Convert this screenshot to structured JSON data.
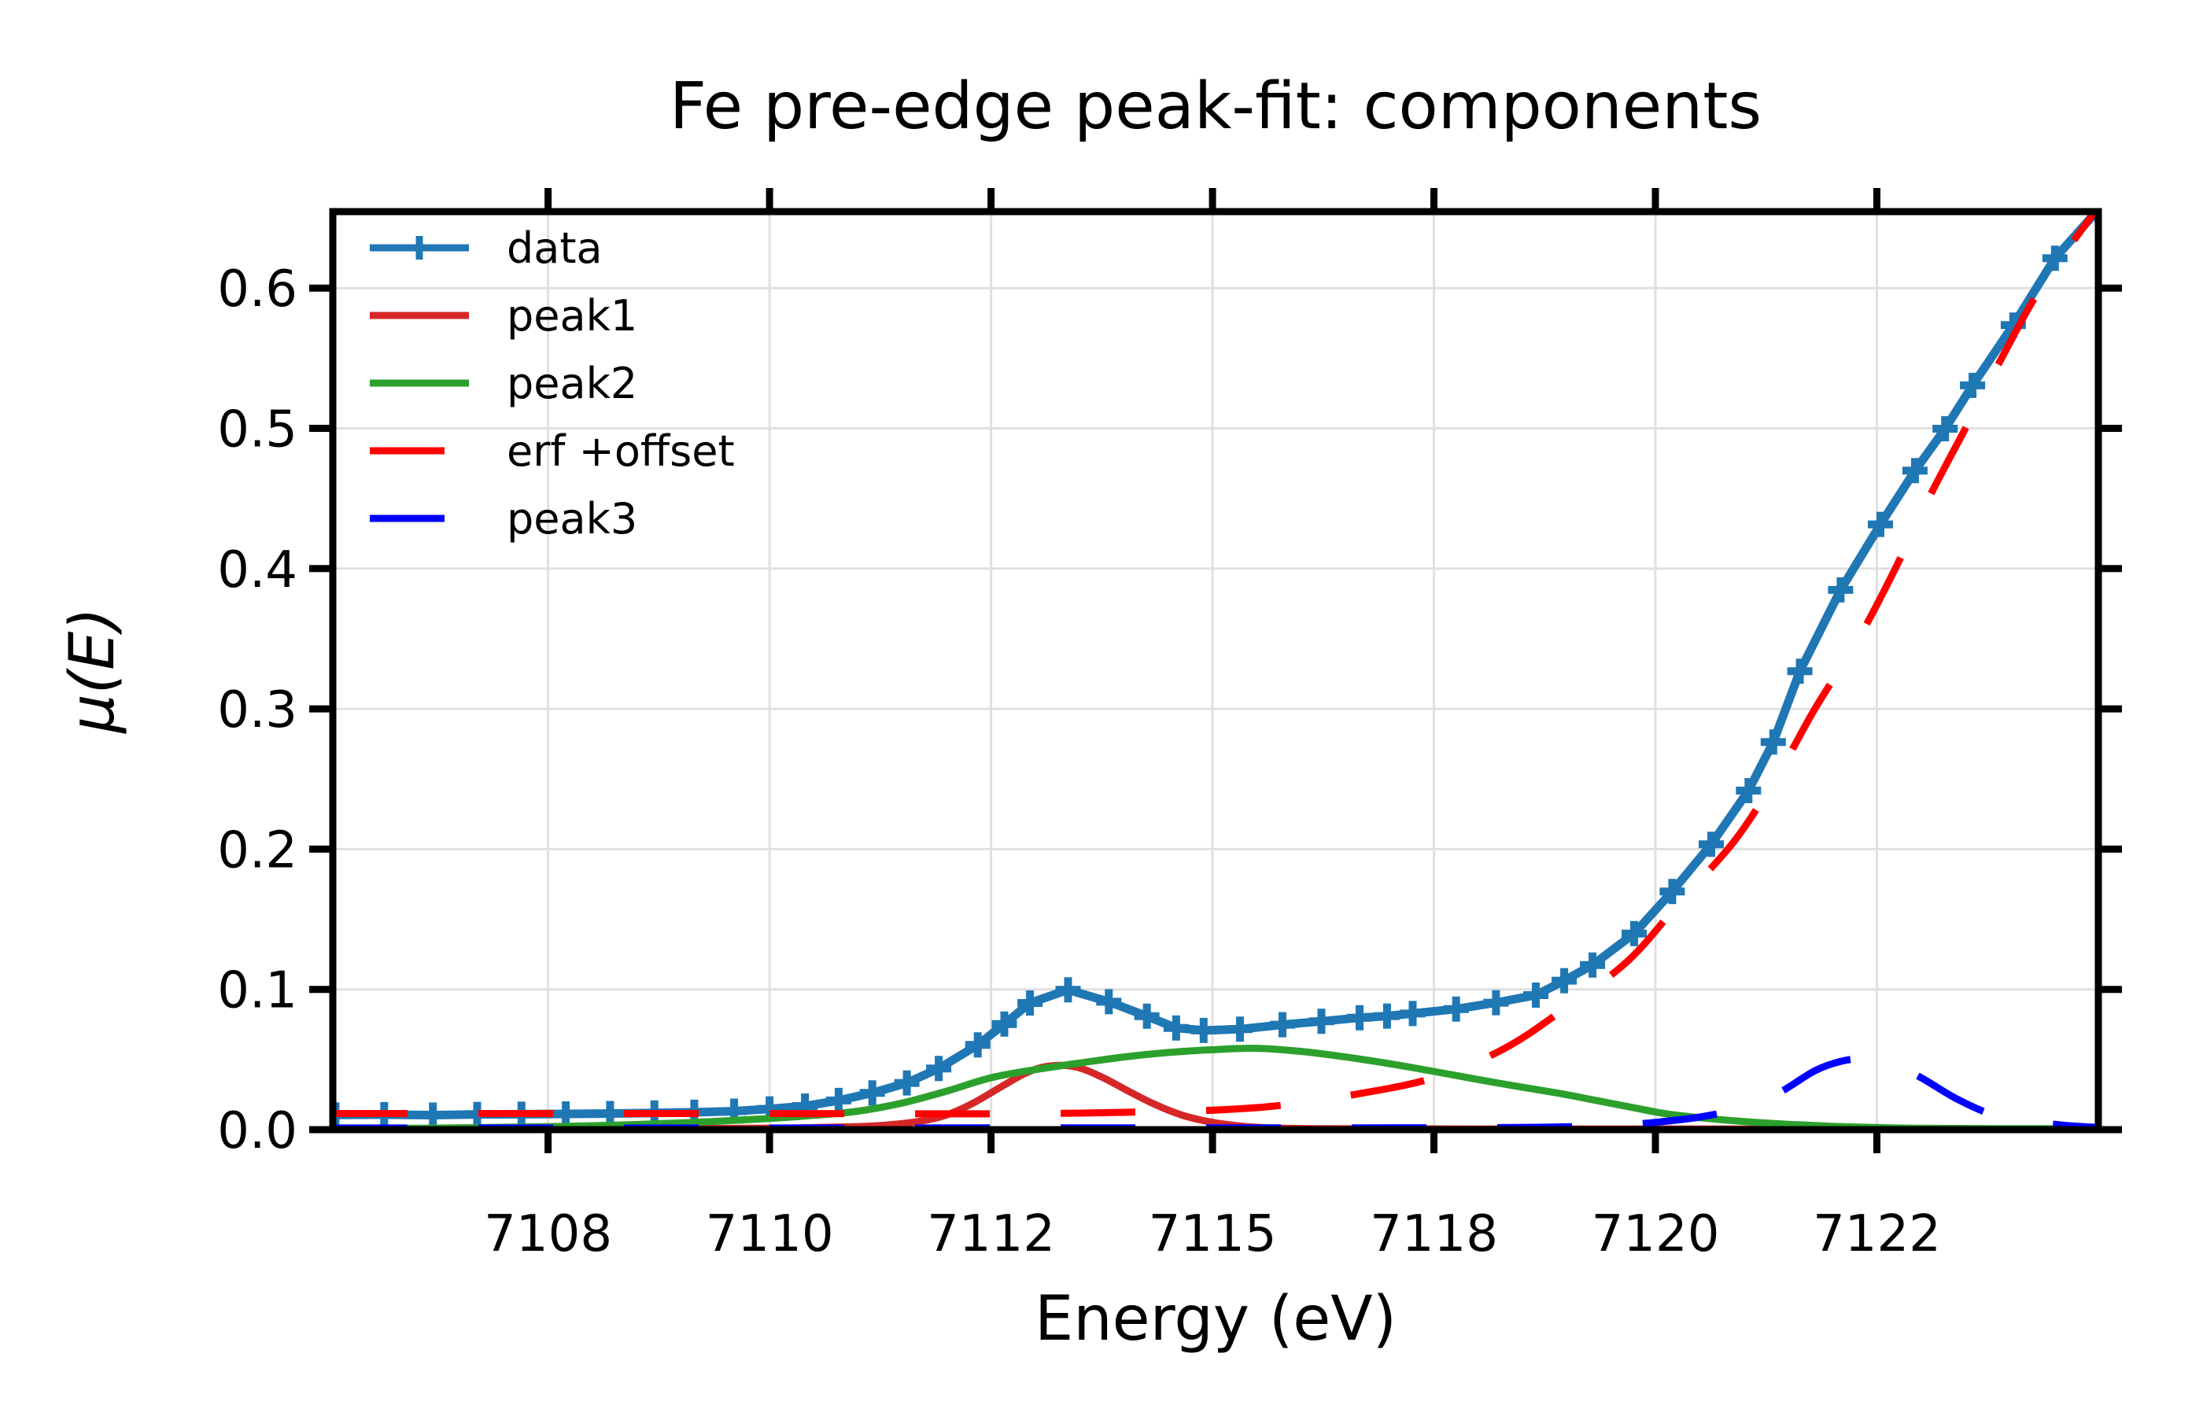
{
  "figure": {
    "title": "Fe pre-edge peak-fit: components",
    "xlabel": "Energy (eV)",
    "ylabel": "μ(E)",
    "background": "#ffffff"
  },
  "chart_data": {
    "type": "line",
    "title": "Fe pre-edge peak-fit: components",
    "xlabel": "Energy (eV)",
    "ylabel": "μ(E)",
    "xlim": [
      7105.07,
      7125.0
    ],
    "ylim": [
      0.0,
      0.6545
    ],
    "grid": true,
    "grid_color": "#e0e0e0",
    "tick_color": "#000000",
    "spine_color": "#000000",
    "legend_position": "upper-left",
    "axes": {
      "x": {
        "ticks": [
          {
            "value": 7107.5,
            "label": "7108"
          },
          {
            "value": 7110.0,
            "label": "7110"
          },
          {
            "value": 7112.5,
            "label": "7112"
          },
          {
            "value": 7115.0,
            "label": "7115"
          },
          {
            "value": 7117.5,
            "label": "7118"
          },
          {
            "value": 7120.0,
            "label": "7120"
          },
          {
            "value": 7122.5,
            "label": "7122"
          }
        ]
      },
      "y": {
        "ticks": [
          {
            "value": 0.0,
            "label": "0.0"
          },
          {
            "value": 0.1,
            "label": "0.1"
          },
          {
            "value": 0.2,
            "label": "0.2"
          },
          {
            "value": 0.3,
            "label": "0.3"
          },
          {
            "value": 0.4,
            "label": "0.4"
          },
          {
            "value": 0.5,
            "label": "0.5"
          },
          {
            "value": 0.6,
            "label": "0.6"
          }
        ]
      }
    },
    "series": [
      {
        "name": "data",
        "color": "#1f77b4",
        "style": "solid",
        "width": 11,
        "marker": "plus",
        "smooth": false,
        "points": [
          [
            7105.1,
            0.0105
          ],
          [
            7105.65,
            0.0107
          ],
          [
            7106.2,
            0.0104
          ],
          [
            7106.7,
            0.0109
          ],
          [
            7107.2,
            0.011
          ],
          [
            7107.7,
            0.0112
          ],
          [
            7108.2,
            0.0115
          ],
          [
            7108.7,
            0.0119
          ],
          [
            7109.15,
            0.0124
          ],
          [
            7109.6,
            0.0132
          ],
          [
            7110.0,
            0.0148
          ],
          [
            7110.4,
            0.0168
          ],
          [
            7110.78,
            0.0208
          ],
          [
            7111.16,
            0.0262
          ],
          [
            7111.55,
            0.0333
          ],
          [
            7111.91,
            0.0436
          ],
          [
            7112.35,
            0.0604
          ],
          [
            7112.65,
            0.0753
          ],
          [
            7112.94,
            0.0903
          ],
          [
            7113.37,
            0.0997
          ],
          [
            7113.83,
            0.0912
          ],
          [
            7114.26,
            0.0809
          ],
          [
            7114.59,
            0.0725
          ],
          [
            7114.9,
            0.0707
          ],
          [
            7115.31,
            0.0716
          ],
          [
            7115.79,
            0.0748
          ],
          [
            7116.23,
            0.0772
          ],
          [
            7116.66,
            0.0798
          ],
          [
            7116.97,
            0.081
          ],
          [
            7117.26,
            0.0828
          ],
          [
            7117.75,
            0.086
          ],
          [
            7118.2,
            0.0905
          ],
          [
            7118.65,
            0.0959
          ],
          [
            7118.97,
            0.1062
          ],
          [
            7119.29,
            0.1174
          ],
          [
            7119.76,
            0.1398
          ],
          [
            7120.19,
            0.1698
          ],
          [
            7120.63,
            0.2034
          ],
          [
            7121.05,
            0.2417
          ],
          [
            7121.33,
            0.2763
          ],
          [
            7121.63,
            0.3268
          ],
          [
            7122.09,
            0.3848
          ],
          [
            7122.54,
            0.4315
          ],
          [
            7122.93,
            0.4698
          ],
          [
            7123.27,
            0.4997
          ],
          [
            7123.58,
            0.5306
          ],
          [
            7124.04,
            0.5736
          ],
          [
            7124.51,
            0.6213
          ],
          [
            7125.0,
            0.656
          ]
        ]
      },
      {
        "name": "peak1",
        "color": "#d62728",
        "style": "solid",
        "width": 9,
        "marker": "none",
        "smooth": true,
        "points": [
          [
            7105.2,
            0.0008
          ],
          [
            7108.0,
            0.0008
          ],
          [
            7109.5,
            0.0009
          ],
          [
            7110.3,
            0.0012
          ],
          [
            7110.9,
            0.002
          ],
          [
            7111.3,
            0.0032
          ],
          [
            7111.7,
            0.006
          ],
          [
            7112.0,
            0.0105
          ],
          [
            7112.3,
            0.019
          ],
          [
            7112.6,
            0.03
          ],
          [
            7112.9,
            0.0405
          ],
          [
            7113.15,
            0.0453
          ],
          [
            7113.45,
            0.0448
          ],
          [
            7113.75,
            0.0375
          ],
          [
            7114.05,
            0.0275
          ],
          [
            7114.35,
            0.018
          ],
          [
            7114.65,
            0.0105
          ],
          [
            7114.95,
            0.0058
          ],
          [
            7115.3,
            0.0027
          ],
          [
            7115.7,
            0.0012
          ],
          [
            7116.3,
            0.0007
          ],
          [
            7118.0,
            0.0005
          ],
          [
            7120.0,
            0.0005
          ],
          [
            7122.0,
            0.0004
          ],
          [
            7125.0,
            0.0004
          ]
        ]
      },
      {
        "name": "peak2",
        "color": "#2ca02c",
        "style": "solid",
        "width": 9,
        "marker": "none",
        "smooth": true,
        "points": [
          [
            7105.2,
            0.0006
          ],
          [
            7106.0,
            0.001
          ],
          [
            7107.0,
            0.0017
          ],
          [
            7108.0,
            0.0028
          ],
          [
            7109.0,
            0.0048
          ],
          [
            7110.0,
            0.008
          ],
          [
            7110.5,
            0.0102
          ],
          [
            7111.0,
            0.0132
          ],
          [
            7111.5,
            0.019
          ],
          [
            7112.0,
            0.0275
          ],
          [
            7112.5,
            0.037
          ],
          [
            7113.0,
            0.0428
          ],
          [
            7113.5,
            0.0475
          ],
          [
            7114.0,
            0.0518
          ],
          [
            7114.5,
            0.055
          ],
          [
            7115.0,
            0.057
          ],
          [
            7115.5,
            0.058
          ],
          [
            7116.0,
            0.0558
          ],
          [
            7116.5,
            0.0518
          ],
          [
            7117.0,
            0.047
          ],
          [
            7117.5,
            0.0415
          ],
          [
            7118.2,
            0.0335
          ],
          [
            7118.9,
            0.026
          ],
          [
            7119.3,
            0.0212
          ],
          [
            7119.7,
            0.0163
          ],
          [
            7120.1,
            0.0115
          ],
          [
            7120.5,
            0.0085
          ],
          [
            7121.0,
            0.0058
          ],
          [
            7121.5,
            0.0038
          ],
          [
            7122.0,
            0.0024
          ],
          [
            7122.5,
            0.0015
          ],
          [
            7123.0,
            0.001
          ],
          [
            7124.0,
            0.0007
          ],
          [
            7125.0,
            0.0007
          ]
        ]
      },
      {
        "name": "erf +offset",
        "color": "#ff0000",
        "style": "dashed",
        "width": 9,
        "marker": "none",
        "smooth": true,
        "points": [
          [
            7105.07,
            0.0115
          ],
          [
            7107.0,
            0.0115
          ],
          [
            7109.0,
            0.0115
          ],
          [
            7111.0,
            0.0114
          ],
          [
            7112.0,
            0.0113
          ],
          [
            7112.8,
            0.0114
          ],
          [
            7113.5,
            0.0118
          ],
          [
            7114.1,
            0.0125
          ],
          [
            7114.8,
            0.0133
          ],
          [
            7115.7,
            0.0168
          ],
          [
            7116.6,
            0.025
          ],
          [
            7117.5,
            0.037
          ],
          [
            7118.3,
            0.058
          ],
          [
            7119.0,
            0.0875
          ],
          [
            7119.7,
            0.121
          ],
          [
            7120.3,
            0.164
          ],
          [
            7120.9,
            0.2065
          ],
          [
            7121.4,
            0.255
          ],
          [
            7121.8,
            0.3
          ],
          [
            7122.3,
            0.351
          ],
          [
            7122.7,
            0.399
          ],
          [
            7123.1,
            0.452
          ],
          [
            7123.5,
            0.5
          ],
          [
            7123.9,
            0.549
          ],
          [
            7124.35,
            0.6
          ],
          [
            7125.0,
            0.658
          ]
        ]
      },
      {
        "name": "peak3",
        "color": "#0000ff",
        "style": "dashed",
        "width": 9,
        "marker": "none",
        "smooth": true,
        "points": [
          [
            7105.07,
            0.0012
          ],
          [
            7108.0,
            0.0012
          ],
          [
            7111.0,
            0.0012
          ],
          [
            7114.0,
            0.0013
          ],
          [
            7116.0,
            0.0013
          ],
          [
            7118.0,
            0.0014
          ],
          [
            7118.8,
            0.0018
          ],
          [
            7119.3,
            0.0025
          ],
          [
            7119.7,
            0.0038
          ],
          [
            7120.0,
            0.0052
          ],
          [
            7120.5,
            0.009
          ],
          [
            7121.0,
            0.0158
          ],
          [
            7121.4,
            0.0265
          ],
          [
            7121.8,
            0.042
          ],
          [
            7122.1,
            0.0488
          ],
          [
            7122.35,
            0.0505
          ],
          [
            7122.65,
            0.048
          ],
          [
            7123.0,
            0.037
          ],
          [
            7123.4,
            0.022
          ],
          [
            7123.8,
            0.011
          ],
          [
            7124.25,
            0.006
          ],
          [
            7124.6,
            0.0032
          ],
          [
            7125.0,
            0.0015
          ]
        ]
      }
    ]
  }
}
